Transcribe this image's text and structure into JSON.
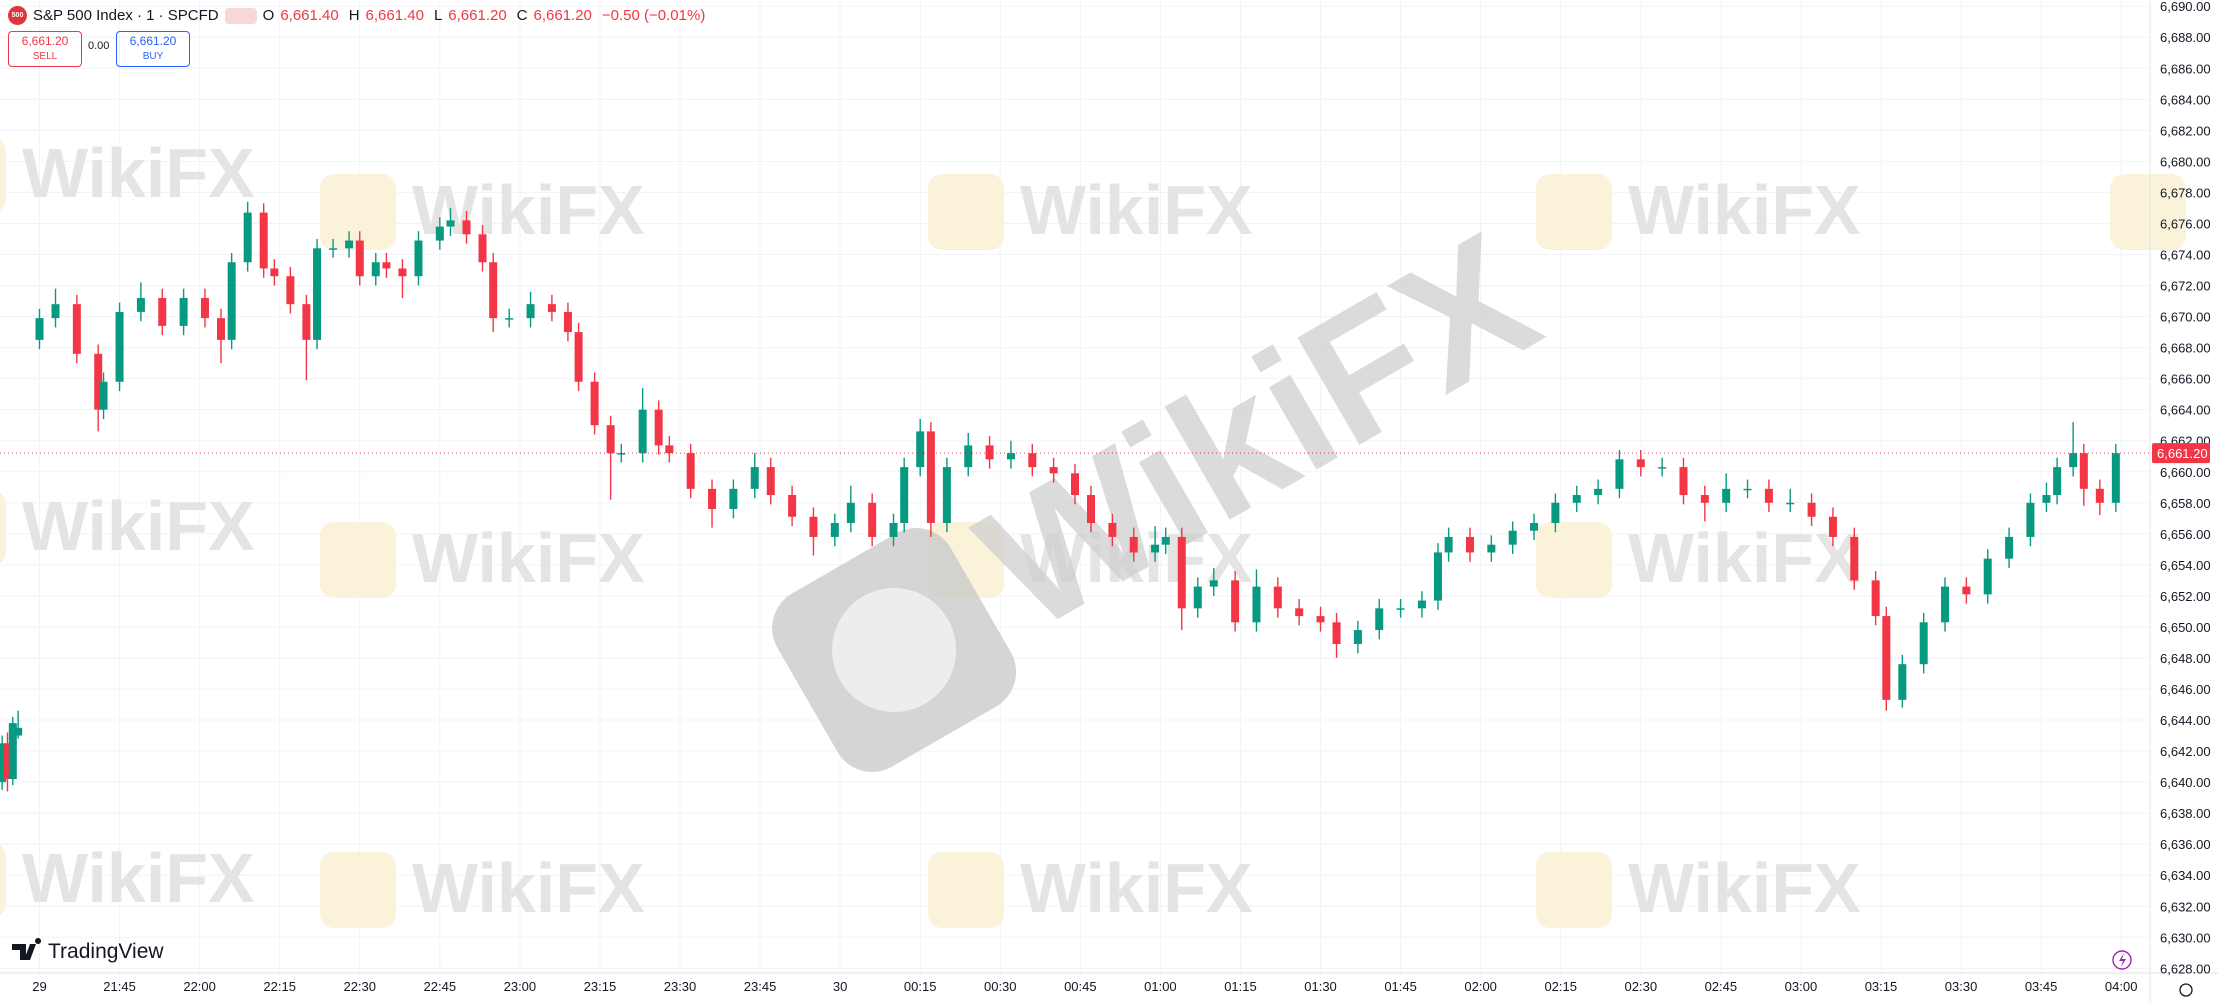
{
  "header": {
    "symbol_badge": "500",
    "symbol": "S&P 500 Index · 1 · SPCFD",
    "ohlc": [
      {
        "key": "O",
        "value": "6,661.40"
      },
      {
        "key": "H",
        "value": "6,661.40"
      },
      {
        "key": "L",
        "value": "6,661.20"
      },
      {
        "key": "C",
        "value": "6,661.20"
      }
    ],
    "change": "−0.50 (−0.01%)",
    "sell": {
      "price": "6,661.20",
      "label": "SELL"
    },
    "spread": "0.00",
    "buy": {
      "price": "6,661.20",
      "label": "BUY"
    }
  },
  "watermark": "WikiFX",
  "brand": "TradingView",
  "chart_data": {
    "type": "candlestick",
    "up_color": "#089981",
    "down_color": "#f23645",
    "grid": true,
    "xlim": [
      -7.4,
      395.4
    ],
    "ylim": [
      6627.7,
      6690.4
    ],
    "last_price": {
      "value": 6661.2,
      "label": "6,661.20"
    },
    "xticks": [
      {
        "value": 0,
        "label": "29"
      },
      {
        "value": 15,
        "label": "21:45"
      },
      {
        "value": 30,
        "label": "22:00"
      },
      {
        "value": 45,
        "label": "22:15"
      },
      {
        "value": 60,
        "label": "22:30"
      },
      {
        "value": 75,
        "label": "22:45"
      },
      {
        "value": 90,
        "label": "23:00"
      },
      {
        "value": 105,
        "label": "23:15"
      },
      {
        "value": 120,
        "label": "23:30"
      },
      {
        "value": 135,
        "label": "23:45"
      },
      {
        "value": 150,
        "label": "30"
      },
      {
        "value": 165,
        "label": "00:15"
      },
      {
        "value": 180,
        "label": "00:30"
      },
      {
        "value": 195,
        "label": "00:45"
      },
      {
        "value": 210,
        "label": "01:00"
      },
      {
        "value": 225,
        "label": "01:15"
      },
      {
        "value": 240,
        "label": "01:30"
      },
      {
        "value": 255,
        "label": "01:45"
      },
      {
        "value": 270,
        "label": "02:00"
      },
      {
        "value": 285,
        "label": "02:15"
      },
      {
        "value": 300,
        "label": "02:30"
      },
      {
        "value": 315,
        "label": "02:45"
      },
      {
        "value": 330,
        "label": "03:00"
      },
      {
        "value": 345,
        "label": "03:15"
      },
      {
        "value": 360,
        "label": "03:30"
      },
      {
        "value": 375,
        "label": "03:45"
      },
      {
        "value": 390,
        "label": "04:00"
      }
    ],
    "yticks": [
      {
        "value": 6628,
        "label": "6,628.00"
      },
      {
        "value": 6630,
        "label": "6,630.00"
      },
      {
        "value": 6632,
        "label": "6,632.00"
      },
      {
        "value": 6634,
        "label": "6,634.00"
      },
      {
        "value": 6636,
        "label": "6,636.00"
      },
      {
        "value": 6638,
        "label": "6,638.00"
      },
      {
        "value": 6640,
        "label": "6,640.00"
      },
      {
        "value": 6642,
        "label": "6,642.00"
      },
      {
        "value": 6644,
        "label": "6,644.00"
      },
      {
        "value": 6646,
        "label": "6,646.00"
      },
      {
        "value": 6648,
        "label": "6,648.00"
      },
      {
        "value": 6650,
        "label": "6,650.00"
      },
      {
        "value": 6652,
        "label": "6,652.00"
      },
      {
        "value": 6654,
        "label": "6,654.00"
      },
      {
        "value": 6656,
        "label": "6,656.00"
      },
      {
        "value": 6658,
        "label": "6,658.00"
      },
      {
        "value": 6660,
        "label": "6,660.00"
      },
      {
        "value": 6662,
        "label": "6,662.00"
      },
      {
        "value": 6664,
        "label": "6,664.00"
      },
      {
        "value": 6666,
        "label": "6,666.00"
      },
      {
        "value": 6668,
        "label": "6,668.00"
      },
      {
        "value": 6670,
        "label": "6,670.00"
      },
      {
        "value": 6672,
        "label": "6,672.00"
      },
      {
        "value": 6674,
        "label": "6,674.00"
      },
      {
        "value": 6676,
        "label": "6,676.00"
      },
      {
        "value": 6678,
        "label": "6,678.00"
      },
      {
        "value": 6680,
        "label": "6,680.00"
      },
      {
        "value": 6682,
        "label": "6,682.00"
      },
      {
        "value": 6684,
        "label": "6,684.00"
      },
      {
        "value": 6686,
        "label": "6,686.00"
      },
      {
        "value": 6688,
        "label": "6,688.00"
      },
      {
        "value": 6690,
        "label": "6,690.00"
      }
    ],
    "x": [
      -7,
      -6,
      -5,
      -4,
      0,
      3,
      7,
      11,
      12,
      15,
      19,
      23,
      27,
      31,
      34,
      36,
      39,
      42,
      44,
      47,
      50,
      52,
      55,
      58,
      60,
      63,
      65,
      68,
      71,
      75,
      77,
      80,
      83,
      85,
      88,
      92,
      96,
      99,
      101,
      104,
      107,
      109,
      113,
      116,
      118,
      122,
      126,
      130,
      134,
      137,
      141,
      145,
      149,
      152,
      156,
      160,
      162,
      165,
      167,
      170,
      174,
      178,
      182,
      186,
      190,
      194,
      197,
      201,
      205,
      209,
      211,
      214,
      217,
      220,
      224,
      228,
      232,
      236,
      240,
      243,
      247,
      251,
      255,
      259,
      262,
      264,
      268,
      272,
      276,
      280,
      284,
      288,
      292,
      296,
      300,
      304,
      308,
      312,
      316,
      320,
      324,
      328,
      332,
      336,
      340,
      344,
      346,
      349,
      353,
      357,
      361,
      365,
      369,
      373,
      376,
      378,
      381,
      383,
      386,
      389
    ],
    "open": [
      6640.0,
      6642.5,
      6640.2,
      6643.0,
      6668.5,
      6669.9,
      6670.8,
      6667.6,
      6664.0,
      6665.8,
      6670.3,
      6671.2,
      6669.4,
      6671.2,
      6669.9,
      6668.5,
      6673.5,
      6676.7,
      6673.1,
      6672.6,
      6670.8,
      6668.5,
      6674.4,
      6674.4,
      6674.9,
      6672.6,
      6673.5,
      6673.1,
      6672.6,
      6674.9,
      6675.8,
      6676.2,
      6675.3,
      6673.5,
      6669.9,
      6669.9,
      6670.8,
      6670.3,
      6669.0,
      6665.8,
      6663.0,
      6661.2,
      6661.2,
      6664.0,
      6661.7,
      6661.2,
      6658.9,
      6657.6,
      6658.9,
      6660.3,
      6658.5,
      6657.1,
      6655.8,
      6656.7,
      6658.0,
      6655.8,
      6656.7,
      6660.3,
      6662.6,
      6656.7,
      6660.3,
      6661.7,
      6660.8,
      6661.2,
      6660.3,
      6659.9,
      6658.5,
      6656.7,
      6655.8,
      6654.8,
      6655.3,
      6655.8,
      6651.2,
      6652.6,
      6653.0,
      6650.3,
      6652.6,
      6651.2,
      6650.7,
      6650.3,
      6648.9,
      6649.8,
      6651.2,
      6651.2,
      6651.7,
      6654.8,
      6655.8,
      6654.8,
      6655.3,
      6656.2,
      6656.7,
      6658.0,
      6658.5,
      6658.9,
      6660.8,
      6660.3,
      6660.3,
      6658.5,
      6658.0,
      6658.9,
      6658.9,
      6658.0,
      6658.0,
      6657.1,
      6655.8,
      6653.0,
      6650.7,
      6645.3,
      6647.6,
      6650.3,
      6652.6,
      6652.1,
      6654.4,
      6655.8,
      6658.0,
      6658.5,
      6660.3,
      6661.2,
      6658.9,
      6658.0
    ],
    "close": [
      6642.5,
      6640.2,
      6643.8,
      6643.5,
      6669.9,
      6670.8,
      6667.6,
      6664.0,
      6665.8,
      6670.3,
      6671.2,
      6669.4,
      6671.2,
      6669.9,
      6668.5,
      6673.5,
      6676.7,
      6673.1,
      6672.6,
      6670.8,
      6668.5,
      6674.4,
      6674.4,
      6674.9,
      6672.6,
      6673.5,
      6673.1,
      6672.6,
      6674.9,
      6675.8,
      6676.2,
      6675.3,
      6673.5,
      6669.9,
      6669.9,
      6670.8,
      6670.3,
      6669.0,
      6665.8,
      6663.0,
      6661.2,
      6661.2,
      6664.0,
      6661.7,
      6661.2,
      6658.9,
      6657.6,
      6658.9,
      6660.3,
      6658.5,
      6657.1,
      6655.8,
      6656.7,
      6658.0,
      6655.8,
      6656.7,
      6660.3,
      6662.6,
      6656.7,
      6660.3,
      6661.7,
      6660.8,
      6661.2,
      6660.3,
      6659.9,
      6658.5,
      6656.7,
      6655.8,
      6654.8,
      6655.3,
      6655.8,
      6651.2,
      6652.6,
      6653.0,
      6650.3,
      6652.6,
      6651.2,
      6650.7,
      6650.3,
      6648.9,
      6649.8,
      6651.2,
      6651.2,
      6651.7,
      6654.8,
      6655.8,
      6654.8,
      6655.3,
      6656.2,
      6656.7,
      6658.0,
      6658.5,
      6658.9,
      6660.8,
      6660.3,
      6660.3,
      6658.5,
      6658.0,
      6658.9,
      6658.9,
      6658.0,
      6658.0,
      6657.1,
      6655.8,
      6653.0,
      6650.7,
      6645.3,
      6647.6,
      6650.3,
      6652.6,
      6652.1,
      6654.4,
      6655.8,
      6658.0,
      6658.5,
      6660.3,
      6661.2,
      6658.9,
      6658.0,
      6661.2
    ],
    "high": [
      6643.0,
      6643.2,
      6644.2,
      6644.6,
      6670.5,
      6671.8,
      6671.4,
      6668.2,
      6666.4,
      6670.9,
      6672.2,
      6671.8,
      6671.8,
      6671.8,
      6670.5,
      6674.1,
      6677.4,
      6677.3,
      6673.7,
      6673.2,
      6671.4,
      6675.0,
      6675.0,
      6675.5,
      6675.5,
      6674.1,
      6674.1,
      6673.7,
      6675.5,
      6676.4,
      6677.0,
      6676.8,
      6675.9,
      6674.1,
      6670.5,
      6671.6,
      6671.4,
      6670.9,
      6669.6,
      6666.4,
      6663.6,
      6661.8,
      6665.4,
      6664.6,
      6662.3,
      6661.8,
      6659.5,
      6659.5,
      6661.2,
      6660.9,
      6659.1,
      6657.7,
      6657.3,
      6659.1,
      6658.6,
      6657.3,
      6660.9,
      6663.4,
      6663.2,
      6660.9,
      6662.5,
      6662.3,
      6662.0,
      6661.8,
      6660.9,
      6660.5,
      6659.1,
      6657.3,
      6656.4,
      6656.5,
      6656.4,
      6656.4,
      6653.2,
      6653.8,
      6653.6,
      6653.7,
      6653.2,
      6651.8,
      6651.3,
      6650.9,
      6650.4,
      6651.8,
      6651.8,
      6652.3,
      6655.4,
      6656.4,
      6656.4,
      6655.9,
      6656.8,
      6657.3,
      6658.6,
      6659.1,
      6659.5,
      6661.4,
      6661.4,
      6660.9,
      6660.9,
      6659.1,
      6659.9,
      6659.5,
      6659.5,
      6658.9,
      6658.6,
      6657.7,
      6656.4,
      6653.6,
      6651.3,
      6648.2,
      6650.9,
      6653.2,
      6653.2,
      6655.0,
      6656.4,
      6658.6,
      6659.3,
      6660.9,
      6663.2,
      6661.8,
      6659.5,
      6661.8
    ],
    "low": [
      6639.5,
      6639.4,
      6639.8,
      6642.8,
      6667.9,
      6669.3,
      6667.0,
      6662.6,
      6663.4,
      6665.2,
      6669.7,
      6668.8,
      6668.8,
      6669.3,
      6667.0,
      6667.9,
      6672.9,
      6672.5,
      6672.0,
      6670.2,
      6665.9,
      6667.9,
      6673.8,
      6673.8,
      6672.0,
      6672.0,
      6672.5,
      6671.2,
      6672.0,
      6674.3,
      6675.2,
      6674.7,
      6672.9,
      6669.0,
      6669.3,
      6669.3,
      6669.7,
      6668.4,
      6665.2,
      6662.4,
      6658.2,
      6660.6,
      6660.6,
      6661.1,
      6660.6,
      6658.3,
      6656.4,
      6657.0,
      6658.3,
      6657.9,
      6656.5,
      6654.6,
      6655.2,
      6656.1,
      6655.2,
      6655.2,
      6656.1,
      6659.7,
      6655.8,
      6656.1,
      6659.7,
      6660.2,
      6660.2,
      6659.7,
      6659.3,
      6657.9,
      6656.1,
      6655.2,
      6654.2,
      6654.2,
      6654.7,
      6649.8,
      6650.6,
      6652.0,
      6649.7,
      6649.7,
      6650.6,
      6650.1,
      6649.7,
      6648.0,
      6648.3,
      6649.2,
      6650.6,
      6650.6,
      6651.1,
      6654.2,
      6654.2,
      6654.2,
      6654.7,
      6655.6,
      6656.1,
      6657.4,
      6657.9,
      6658.3,
      6659.7,
      6659.7,
      6657.9,
      6656.8,
      6657.4,
      6658.3,
      6657.4,
      6657.4,
      6656.5,
      6655.2,
      6652.4,
      6650.1,
      6644.6,
      6644.8,
      6647.0,
      6649.7,
      6651.5,
      6651.5,
      6653.8,
      6655.2,
      6657.4,
      6657.9,
      6659.7,
      6657.8,
      6657.2,
      6657.4
    ]
  }
}
